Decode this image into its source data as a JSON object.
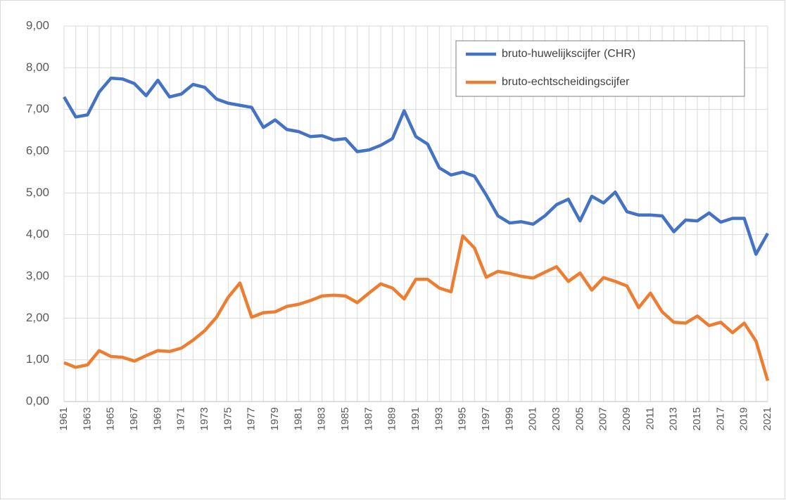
{
  "chart_data": {
    "type": "line",
    "categories": [
      "1961",
      null,
      "1963",
      null,
      "1965",
      null,
      "1967",
      null,
      "1969",
      null,
      "1971",
      null,
      "1973",
      null,
      "1975",
      null,
      "1977",
      null,
      "1979",
      null,
      "1981",
      null,
      "1983",
      null,
      "1985",
      null,
      "1987",
      null,
      "1989",
      null,
      "1991",
      null,
      "1993",
      null,
      "1995",
      null,
      "1997",
      null,
      "1999",
      null,
      "2001",
      null,
      "2003",
      null,
      "2005",
      null,
      "2007",
      null,
      "2009",
      null,
      "2011",
      null,
      "2013",
      null,
      "2015",
      null,
      "2017",
      null,
      "2019",
      null,
      "2021"
    ],
    "series": [
      {
        "name": "bruto-huwelijkscijfer (CHR)",
        "color": "#4472c4",
        "values": [
          7.3,
          6.82,
          6.87,
          7.42,
          7.75,
          7.73,
          7.62,
          7.33,
          7.7,
          7.3,
          7.37,
          7.6,
          7.53,
          7.25,
          7.15,
          7.1,
          7.05,
          6.57,
          6.75,
          6.52,
          6.47,
          6.35,
          6.37,
          6.27,
          6.3,
          5.99,
          6.03,
          6.14,
          6.3,
          6.97,
          6.35,
          6.17,
          5.6,
          5.43,
          5.5,
          5.4,
          4.95,
          4.45,
          4.28,
          4.31,
          4.25,
          4.45,
          4.72,
          4.85,
          4.33,
          4.92,
          4.76,
          5.02,
          4.55,
          4.47,
          4.47,
          4.45,
          4.07,
          4.35,
          4.33,
          4.52,
          4.3,
          4.39,
          4.39,
          3.53,
          4.03
        ]
      },
      {
        "name": "bruto-echtscheidingscijfer",
        "color": "#ed7d31",
        "values": [
          0.93,
          0.82,
          0.88,
          1.22,
          1.08,
          1.06,
          0.97,
          1.1,
          1.22,
          1.2,
          1.28,
          1.47,
          1.7,
          2.02,
          2.5,
          2.84,
          2.02,
          2.13,
          2.15,
          2.28,
          2.33,
          2.42,
          2.53,
          2.55,
          2.53,
          2.37,
          2.6,
          2.82,
          2.72,
          2.46,
          2.93,
          2.93,
          2.72,
          2.63,
          3.97,
          3.68,
          2.98,
          3.12,
          3.07,
          3.0,
          2.96,
          3.1,
          3.23,
          2.88,
          3.08,
          2.67,
          2.97,
          2.88,
          2.77,
          2.25,
          2.6,
          2.15,
          1.9,
          1.88,
          2.05,
          1.82,
          1.9,
          1.65,
          1.88,
          1.45,
          0.5
        ]
      }
    ],
    "ylim": [
      0,
      9
    ],
    "yticks": [
      {
        "value": 0,
        "label": "0,00"
      },
      {
        "value": 1,
        "label": "1,00"
      },
      {
        "value": 2,
        "label": "2,00"
      },
      {
        "value": 3,
        "label": "3,00"
      },
      {
        "value": 4,
        "label": "4,00"
      },
      {
        "value": 5,
        "label": "5,00"
      },
      {
        "value": 6,
        "label": "6,00"
      },
      {
        "value": 7,
        "label": "7,00"
      },
      {
        "value": 8,
        "label": "8,00"
      },
      {
        "value": 9,
        "label": "9,00"
      }
    ],
    "grid": true,
    "legend": "upper right"
  }
}
